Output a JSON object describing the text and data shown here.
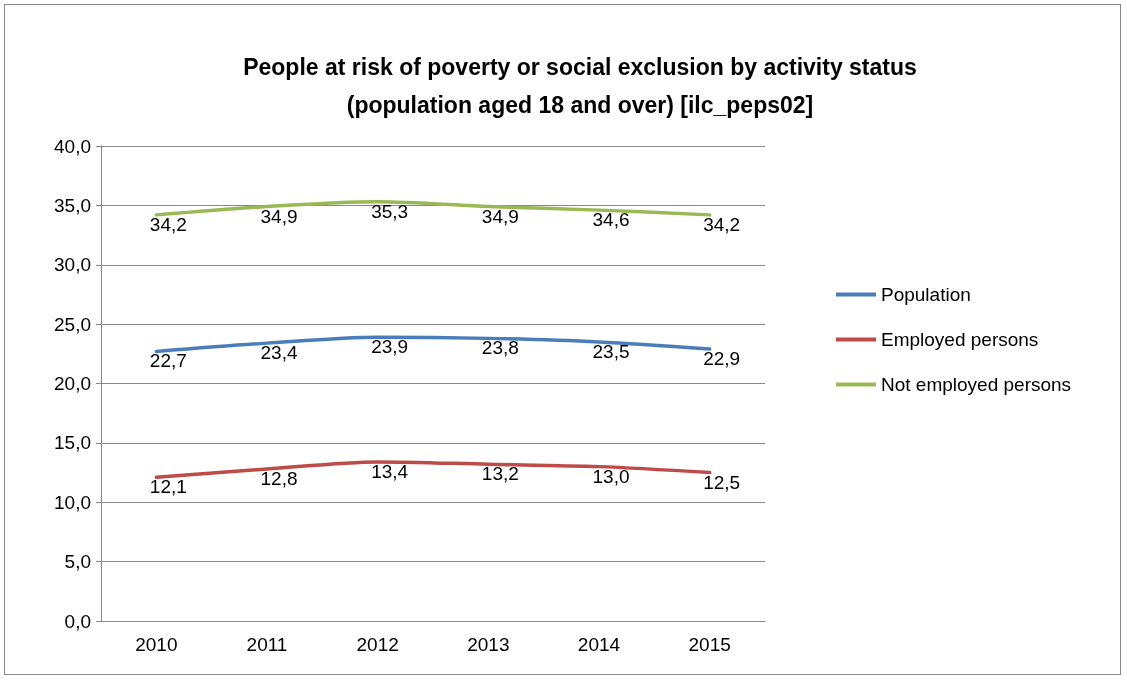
{
  "chart_data": {
    "type": "line",
    "title": "People at risk of poverty or social exclusion by activity status\n(population aged 18 and over) [ilc_peps02]",
    "categories": [
      "2010",
      "2011",
      "2012",
      "2013",
      "2014",
      "2015"
    ],
    "series": [
      {
        "name": "Population",
        "color": "#4a7ebb",
        "values": [
          22.7,
          23.4,
          23.9,
          23.8,
          23.5,
          22.9
        ],
        "value_labels": [
          "22,7",
          "23,4",
          "23,9",
          "23,8",
          "23,5",
          "22,9"
        ]
      },
      {
        "name": "Employed persons",
        "color": "#be4b48",
        "values": [
          12.1,
          12.8,
          13.4,
          13.2,
          13.0,
          12.5
        ],
        "value_labels": [
          "12,1",
          "12,8",
          "13,4",
          "13,2",
          "13,0",
          "12,5"
        ]
      },
      {
        "name": "Not employed persons",
        "color": "#98b954",
        "values": [
          34.2,
          34.9,
          35.3,
          34.9,
          34.6,
          34.2
        ],
        "value_labels": [
          "34,2",
          "34,9",
          "35,3",
          "34,9",
          "34,6",
          "34,2"
        ]
      }
    ],
    "ylim": [
      0,
      40
    ],
    "yticks": [
      {
        "value": 0,
        "label": "0,0"
      },
      {
        "value": 5,
        "label": "5,0"
      },
      {
        "value": 10,
        "label": "10,0"
      },
      {
        "value": 15,
        "label": "15,0"
      },
      {
        "value": 20,
        "label": "20,0"
      },
      {
        "value": 25,
        "label": "25,0"
      },
      {
        "value": 30,
        "label": "30,0"
      },
      {
        "value": 35,
        "label": "35,0"
      },
      {
        "value": 40,
        "label": "40,0"
      }
    ],
    "grid": "y",
    "legend": "right",
    "marker": "none",
    "line_style": "solid"
  }
}
